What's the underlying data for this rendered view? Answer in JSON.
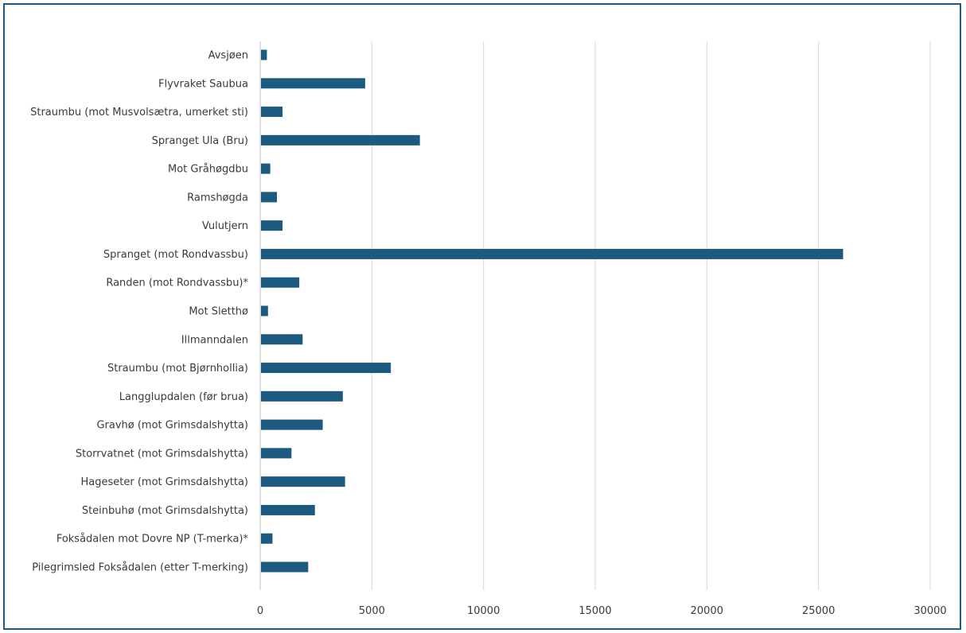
{
  "chart_data": {
    "type": "bar",
    "orientation": "horizontal",
    "title": "",
    "xlabel": "",
    "ylabel": "",
    "xlim": [
      0,
      30000
    ],
    "x_ticks": [
      0,
      5000,
      10000,
      15000,
      20000,
      25000,
      30000
    ],
    "grid": "vertical",
    "legend": "none",
    "bar_color": "#1d5a80",
    "categories": [
      "Avsjøen",
      "Flyvraket Saubua",
      "Straumbu (mot Musvolsætra, umerket sti)",
      "Spranget Ula (Bru)",
      "Mot Gråhøgdbu",
      "Ramshøgda",
      "Vulutjern",
      "Spranget (mot Rondvassbu)",
      "Randen (mot Rondvassbu)*",
      "Mot Sletthø",
      "Illmanndalen",
      "Straumbu (mot Bjørnhollia)",
      "Langglupdalen (før brua)",
      "Gravhø (mot Grimsdalshytta)",
      "Storrvatnet (mot Grimsdalshytta)",
      "Hageseter (mot Grimsdalshytta)",
      "Steinbuhø (mot Grimsdalshytta)",
      "Foksådalen mot Dovre NP (T-merka)*",
      "Pilegrimsled Foksådalen (etter T-merking)"
    ],
    "values": [
      300,
      4700,
      1000,
      7150,
      450,
      750,
      1000,
      26100,
      1750,
      350,
      1900,
      5850,
      3700,
      2800,
      1400,
      3800,
      2450,
      550,
      2150
    ]
  }
}
